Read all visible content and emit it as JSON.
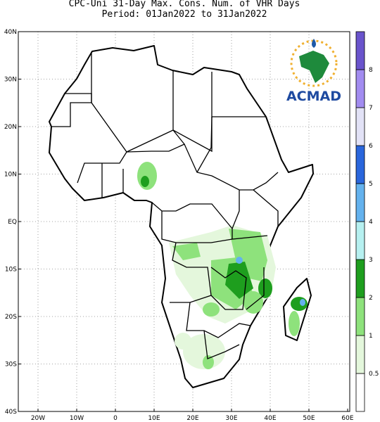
{
  "title": [
    "CPC-Uni 31-Day Max. Cons. Num. of VHR Days",
    "Period: 01Jan2022 to 31Jan2022"
  ],
  "lon_labels": [
    "20W",
    "10W",
    "0",
    "10E",
    "20E",
    "30E",
    "40E",
    "50E",
    "60E"
  ],
  "lat_labels": [
    "40N",
    "30N",
    "20N",
    "10N",
    "EQ",
    "10S",
    "20S",
    "30S",
    "40S"
  ],
  "colorbar": {
    "labels": [
      "0.5",
      "1",
      "2",
      "3",
      "4",
      "5",
      "6",
      "7",
      "8"
    ],
    "colors": [
      "#ffffff",
      "#e4f7dc",
      "#8ee27c",
      "#1e9e1e",
      "#b6f0f0",
      "#64b2ee",
      "#2a66dc",
      "#e2e2f6",
      "#a28cf0",
      "#6a54cc"
    ]
  },
  "logo": "ACMAD"
}
